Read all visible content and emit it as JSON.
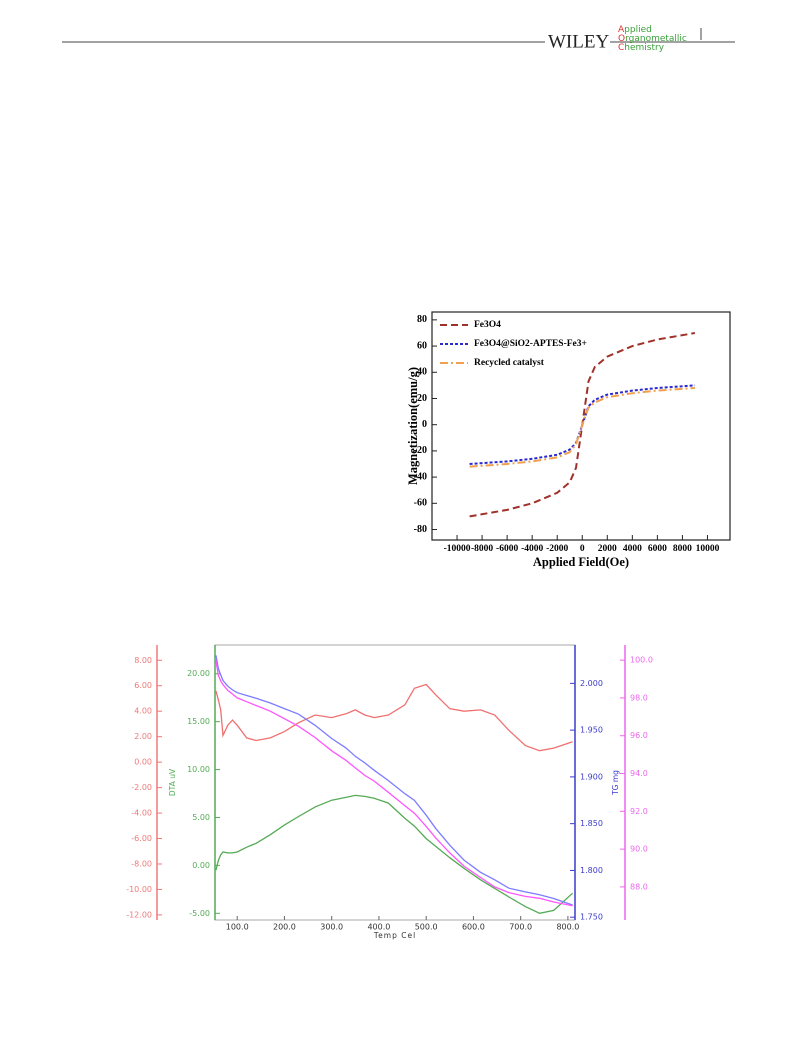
{
  "header": {
    "logo": "WILEY",
    "journal": [
      "Applied",
      "Organometallic",
      "Chemistry"
    ]
  },
  "chart_data": [
    {
      "type": "line",
      "x_label": "Applied Field(Oe)",
      "y_label": "Magnetization(emu/g)",
      "xlim": [
        -12000,
        11800
      ],
      "ylim": [
        -88,
        86
      ],
      "xticks": [
        -10000,
        -8000,
        -6000,
        -4000,
        -2000,
        0,
        2000,
        4000,
        6000,
        8000,
        10000
      ],
      "yticks": [
        -80,
        -60,
        -40,
        -20,
        0,
        20,
        40,
        60,
        80
      ],
      "legend": "upper-left",
      "x": [
        -9000,
        -6000,
        -4000,
        -2000,
        -1000,
        -500,
        0,
        500,
        1000,
        2000,
        4000,
        6000,
        9000
      ],
      "series": [
        {
          "name": "Fe3O4",
          "color": "#a0302a",
          "style": "dashed",
          "values": [
            -70,
            -65,
            -60,
            -52,
            -44,
            -33,
            0,
            33,
            44,
            52,
            60,
            65,
            70
          ]
        },
        {
          "name": "Fe3O4@SiO2-APTES-Fe3+",
          "color": "#2a2ad0",
          "style": "dotted",
          "values": [
            -30,
            -28,
            -26,
            -23,
            -19,
            -14,
            0,
            14,
            19,
            23,
            26,
            28,
            30
          ]
        },
        {
          "name": "Recycled catalyst",
          "color": "#f0a050",
          "style": "dashdot",
          "values": [
            -32,
            -30,
            -28,
            -25,
            -21,
            -15,
            0,
            13,
            17,
            21,
            24,
            26,
            28
          ]
        }
      ]
    },
    {
      "type": "multiaxis-line",
      "x_label": "Temp Cel",
      "xlim": [
        53,
        815
      ],
      "xticks": [
        {
          "value": 100,
          "label": "100.0"
        },
        {
          "value": 200,
          "label": "200.0"
        },
        {
          "value": 300,
          "label": "300.0"
        },
        {
          "value": 400,
          "label": "400.0"
        },
        {
          "value": 500,
          "label": "500.0"
        },
        {
          "value": 600,
          "label": "600.0"
        },
        {
          "value": 700,
          "label": "700.0"
        },
        {
          "value": 800,
          "label": "800.0"
        }
      ],
      "yaxes": [
        {
          "color": "#f07878",
          "lim": [
            -12.4,
            9.2
          ],
          "ticks": [
            {
              "value": 8,
              "label": "8.00"
            },
            {
              "value": 6,
              "label": "6.00"
            },
            {
              "value": 4,
              "label": "4.00"
            },
            {
              "value": 2,
              "label": "2.00"
            },
            {
              "value": 0,
              "label": "0.00"
            },
            {
              "value": -2,
              "label": "-2.00"
            },
            {
              "value": -4,
              "label": "-4.00"
            },
            {
              "value": -6,
              "label": "-6.00"
            },
            {
              "value": -8,
              "label": "-8.00"
            },
            {
              "value": -10,
              "label": "-10.00"
            },
            {
              "value": -12,
              "label": "-12.00"
            }
          ]
        },
        {
          "color": "#55aa55",
          "label": "DTA uV",
          "lim": [
            -5.7,
            23
          ],
          "ticks": [
            {
              "value": 20,
              "label": "20.00"
            },
            {
              "value": 15,
              "label": "15.00"
            },
            {
              "value": 10,
              "label": "10.00"
            },
            {
              "value": 5,
              "label": "5.00"
            },
            {
              "value": 0,
              "label": "0.00"
            },
            {
              "value": -5,
              "label": "-5.00"
            }
          ]
        },
        {
          "color": "#3c3ccc",
          "label": "TG mg",
          "lim": [
            1.747,
            2.041
          ],
          "ticks": [
            {
              "value": 2,
              "label": "2.000"
            },
            {
              "value": 1.95,
              "label": "1.950"
            },
            {
              "value": 1.9,
              "label": "1.900"
            },
            {
              "value": 1.85,
              "label": "1.850"
            },
            {
              "value": 1.8,
              "label": "1.800"
            },
            {
              "value": 1.75,
              "label": "1.750"
            }
          ]
        },
        {
          "color": "#ee66ee",
          "lim": [
            86.25,
            100.8
          ],
          "ticks": [
            {
              "value": 100,
              "label": "100.0"
            },
            {
              "value": 98,
              "label": "98.0"
            },
            {
              "value": 96,
              "label": "96.0"
            },
            {
              "value": 94,
              "label": "94.0"
            },
            {
              "value": 92,
              "label": "92.0"
            },
            {
              "value": 90,
              "label": "90.0"
            },
            {
              "value": 88,
              "label": "88.0"
            }
          ]
        }
      ],
      "x": [
        55,
        60,
        65,
        70,
        80,
        90,
        100,
        120,
        140,
        170,
        200,
        230,
        265,
        300,
        330,
        350,
        370,
        390,
        420,
        455,
        475,
        500,
        520,
        550,
        580,
        615,
        645,
        675,
        710,
        740,
        770,
        810
      ],
      "series": [
        {
          "axis": 0,
          "color": "#f07070",
          "values": [
            5.6,
            4.9,
            4.1,
            2.1,
            2.9,
            3.3,
            2.9,
            1.9,
            1.7,
            1.9,
            2.4,
            3.1,
            3.7,
            3.5,
            3.8,
            4.1,
            3.7,
            3.5,
            3.7,
            4.5,
            5.8,
            6.1,
            5.3,
            4.2,
            4.0,
            4.1,
            3.7,
            2.5,
            1.3,
            0.9,
            1.1,
            1.6
          ]
        },
        {
          "axis": 1,
          "color": "#55aa55",
          "values": [
            -0.5,
            0.5,
            1.1,
            1.4,
            1.3,
            1.3,
            1.4,
            1.9,
            2.3,
            3.2,
            4.2,
            5.1,
            6.1,
            6.8,
            7.1,
            7.3,
            7.2,
            7.0,
            6.5,
            4.9,
            4.1,
            2.8,
            2.0,
            0.8,
            -0.3,
            -1.5,
            -2.4,
            -3.3,
            -4.3,
            -5.0,
            -4.7,
            -2.9
          ]
        },
        {
          "axis": 2,
          "color": "#7c7cff",
          "values": [
            2.03,
            2.016,
            2.009,
            2.003,
            1.997,
            1.993,
            1.99,
            1.987,
            1.984,
            1.979,
            1.973,
            1.967,
            1.955,
            1.941,
            1.931,
            1.922,
            1.915,
            1.907,
            1.896,
            1.882,
            1.875,
            1.859,
            1.845,
            1.827,
            1.811,
            1.798,
            1.79,
            1.781,
            1.777,
            1.774,
            1.77,
            1.763
          ]
        },
        {
          "axis": 3,
          "color": "#ff55ff",
          "values": [
            100.0,
            99.2,
            98.9,
            98.7,
            98.4,
            98.2,
            98.0,
            97.8,
            97.6,
            97.3,
            96.9,
            96.5,
            95.9,
            95.2,
            94.7,
            94.3,
            93.9,
            93.6,
            93.0,
            92.3,
            91.9,
            91.2,
            90.6,
            89.8,
            89.1,
            88.5,
            88.0,
            87.7,
            87.5,
            87.4,
            87.2,
            87.0
          ]
        }
      ]
    }
  ]
}
